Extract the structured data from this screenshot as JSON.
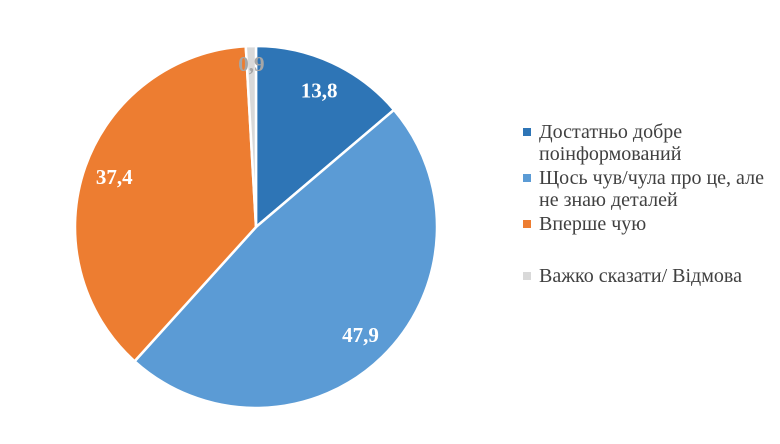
{
  "chart_data": {
    "type": "pie",
    "title": "",
    "decimal_separator": ",",
    "start_angle_deg": 0,
    "direction": "clockwise",
    "legend_position": "right",
    "background_color": "#FFFFFF",
    "legend_text_color": "#404040",
    "slice_border_color": "#FFFFFF",
    "slices": [
      {
        "label": "Достатньо добре поінформований",
        "value": 13.8,
        "display_value": "13,8",
        "color": "#2E75B6",
        "value_label_color": "#FFFFFF"
      },
      {
        "label": "Щось чув/чула про це, але не знаю деталей",
        "value": 47.9,
        "display_value": "47,9",
        "color": "#5B9BD5",
        "value_label_color": "#FFFFFF"
      },
      {
        "label": "Вперше чую",
        "value": 37.4,
        "display_value": "37,4",
        "color": "#ED7D31",
        "value_label_color": "#FFFFFF"
      },
      {
        "label": "Важко сказати/ Відмова",
        "value": 0.9,
        "display_value": "0,9",
        "color": "#D9D9D9",
        "value_label_color": "#A6A6A6"
      }
    ]
  }
}
